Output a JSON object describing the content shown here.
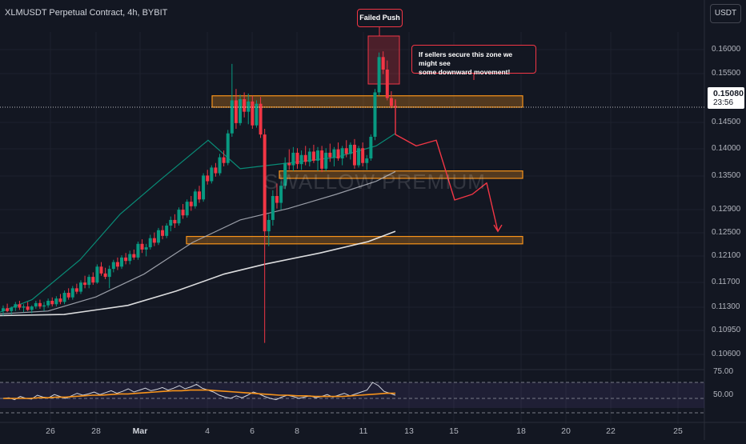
{
  "header": {
    "symbol_line": "XLMUSDT Perpetual Contract, 4h, BYBIT"
  },
  "currency_button": "USDT",
  "price_axis": [
    "0.16000",
    "0.15500",
    "0.14500",
    "0.14000",
    "0.13500",
    "0.12900",
    "0.12500",
    "0.12100",
    "0.11700",
    "0.11300",
    "0.10950",
    "0.10600"
  ],
  "current_price": {
    "price": "0.15080",
    "countdown": "23:56"
  },
  "rsi_axis": [
    "75.00",
    "50.00"
  ],
  "time_axis": [
    {
      "label": "26"
    },
    {
      "label": "28"
    },
    {
      "label": "Mar",
      "bold": true
    },
    {
      "label": "4"
    },
    {
      "label": "6"
    },
    {
      "label": "8"
    },
    {
      "label": "11"
    },
    {
      "label": "13"
    },
    {
      "label": "15"
    },
    {
      "label": "18"
    },
    {
      "label": "20"
    },
    {
      "label": "22"
    },
    {
      "label": "25"
    }
  ],
  "watermark": "SWALLOW PREMIUM",
  "annotations": {
    "failed_push": "Failed Push",
    "note_line1": "If sellers secure this zone we might see",
    "note_line2": "some downward movement!"
  },
  "colors": {
    "up": "#089981",
    "down": "#f23645",
    "zone": "#f7931a",
    "ma": "#ffffff",
    "rsi": "#f7931a"
  },
  "chart_data": {
    "type": "candlestick",
    "timeframe": "4h",
    "ylim": [
      0.105,
      0.164
    ],
    "zones": [
      {
        "low": 0.1508,
        "high": 0.1528
      },
      {
        "low": 0.1383,
        "high": 0.1396
      },
      {
        "low": 0.1268,
        "high": 0.1281
      }
    ],
    "candles": [
      [
        0.115,
        0.116,
        0.1142,
        0.1155
      ],
      [
        0.1155,
        0.1163,
        0.1148,
        0.115
      ],
      [
        0.115,
        0.1158,
        0.1144,
        0.1156
      ],
      [
        0.1156,
        0.1166,
        0.115,
        0.1162
      ],
      [
        0.1162,
        0.1168,
        0.1152,
        0.1156
      ],
      [
        0.1156,
        0.1162,
        0.1148,
        0.1158
      ],
      [
        0.1158,
        0.1166,
        0.115,
        0.1152
      ],
      [
        0.1152,
        0.116,
        0.1146,
        0.1158
      ],
      [
        0.1158,
        0.1168,
        0.1154,
        0.1164
      ],
      [
        0.1164,
        0.117,
        0.1154,
        0.1158
      ],
      [
        0.1158,
        0.1166,
        0.115,
        0.116
      ],
      [
        0.116,
        0.1172,
        0.1156,
        0.1168
      ],
      [
        0.1168,
        0.1174,
        0.1158,
        0.1162
      ],
      [
        0.1162,
        0.1176,
        0.1158,
        0.1172
      ],
      [
        0.1172,
        0.118,
        0.1162,
        0.1166
      ],
      [
        0.1166,
        0.1186,
        0.1162,
        0.1182
      ],
      [
        0.1182,
        0.119,
        0.117,
        0.1174
      ],
      [
        0.1174,
        0.1194,
        0.117,
        0.119
      ],
      [
        0.119,
        0.1198,
        0.118,
        0.1184
      ],
      [
        0.1184,
        0.1204,
        0.118,
        0.12
      ],
      [
        0.12,
        0.1212,
        0.119,
        0.1196
      ],
      [
        0.1196,
        0.1214,
        0.119,
        0.121
      ],
      [
        0.121,
        0.1218,
        0.1196,
        0.12
      ],
      [
        0.12,
        0.1232,
        0.1198,
        0.1228
      ],
      [
        0.1228,
        0.1236,
        0.1212,
        0.1216
      ],
      [
        0.1216,
        0.1226,
        0.1206,
        0.121
      ],
      [
        0.121,
        0.123,
        0.119,
        0.1224
      ],
      [
        0.1224,
        0.124,
        0.1218,
        0.1236
      ],
      [
        0.1236,
        0.1244,
        0.1222,
        0.1228
      ],
      [
        0.1228,
        0.1248,
        0.1224,
        0.1244
      ],
      [
        0.1244,
        0.1252,
        0.1232,
        0.1238
      ],
      [
        0.1238,
        0.1256,
        0.1232,
        0.125
      ],
      [
        0.125,
        0.1258,
        0.124,
        0.1244
      ],
      [
        0.1244,
        0.1272,
        0.124,
        0.1268
      ],
      [
        0.1268,
        0.1276,
        0.1252,
        0.1258
      ],
      [
        0.1258,
        0.1268,
        0.1246,
        0.1262
      ],
      [
        0.1262,
        0.1284,
        0.1258,
        0.1278
      ],
      [
        0.1278,
        0.1288,
        0.1264,
        0.127
      ],
      [
        0.127,
        0.1296,
        0.1266,
        0.1292
      ],
      [
        0.1292,
        0.13,
        0.1276,
        0.1282
      ],
      [
        0.1282,
        0.1304,
        0.1278,
        0.13
      ],
      [
        0.13,
        0.1316,
        0.129,
        0.131
      ],
      [
        0.131,
        0.132,
        0.1296,
        0.1304
      ],
      [
        0.1304,
        0.1332,
        0.13,
        0.1328
      ],
      [
        0.1328,
        0.1338,
        0.1312,
        0.1318
      ],
      [
        0.1318,
        0.1346,
        0.1314,
        0.1342
      ],
      [
        0.1342,
        0.1352,
        0.1326,
        0.1334
      ],
      [
        0.1334,
        0.1364,
        0.133,
        0.136
      ],
      [
        0.136,
        0.137,
        0.134,
        0.1346
      ],
      [
        0.1346,
        0.1392,
        0.1342,
        0.1388
      ],
      [
        0.1388,
        0.1398,
        0.1372,
        0.1378
      ],
      [
        0.1378,
        0.1406,
        0.1374,
        0.1402
      ],
      [
        0.1402,
        0.141,
        0.1386,
        0.1392
      ],
      [
        0.1392,
        0.1426,
        0.1388,
        0.142
      ],
      [
        0.142,
        0.1432,
        0.1404,
        0.141
      ],
      [
        0.141,
        0.1468,
        0.1406,
        0.1462
      ],
      [
        0.1462,
        0.1584,
        0.1456,
        0.152
      ],
      [
        0.152,
        0.154,
        0.147,
        0.148
      ],
      [
        0.148,
        0.153,
        0.1476,
        0.1522
      ],
      [
        0.1522,
        0.1534,
        0.149,
        0.15
      ],
      [
        0.15,
        0.1532,
        0.1478,
        0.1518
      ],
      [
        0.1518,
        0.1528,
        0.147,
        0.1476
      ],
      [
        0.1476,
        0.152,
        0.1472,
        0.1514
      ],
      [
        0.1514,
        0.1526,
        0.1454,
        0.146
      ],
      [
        0.146,
        0.147,
        0.1094,
        0.129
      ],
      [
        0.129,
        0.132,
        0.1264,
        0.131
      ],
      [
        0.131,
        0.1362,
        0.13,
        0.1352
      ],
      [
        0.1352,
        0.1374,
        0.133,
        0.134
      ],
      [
        0.134,
        0.1378,
        0.1328,
        0.137
      ],
      [
        0.137,
        0.142,
        0.1364,
        0.141
      ],
      [
        0.141,
        0.1434,
        0.1398,
        0.1406
      ],
      [
        0.1406,
        0.1438,
        0.1396,
        0.1428
      ],
      [
        0.1428,
        0.1436,
        0.14,
        0.1408
      ],
      [
        0.1408,
        0.1432,
        0.1398,
        0.1424
      ],
      [
        0.1424,
        0.144,
        0.1406,
        0.1412
      ],
      [
        0.1412,
        0.1436,
        0.1404,
        0.143
      ],
      [
        0.143,
        0.1442,
        0.141,
        0.1414
      ],
      [
        0.1414,
        0.1438,
        0.1396,
        0.1432
      ],
      [
        0.1432,
        0.144,
        0.1394,
        0.14
      ],
      [
        0.14,
        0.1436,
        0.1396,
        0.1428
      ],
      [
        0.1428,
        0.1444,
        0.1412,
        0.142
      ],
      [
        0.142,
        0.1438,
        0.1404,
        0.1434
      ],
      [
        0.1434,
        0.1446,
        0.1414,
        0.1418
      ],
      [
        0.1418,
        0.144,
        0.1406,
        0.1436
      ],
      [
        0.1436,
        0.145,
        0.142,
        0.1426
      ],
      [
        0.1426,
        0.1446,
        0.1416,
        0.1442
      ],
      [
        0.1442,
        0.1452,
        0.14,
        0.1406
      ],
      [
        0.1406,
        0.144,
        0.1402,
        0.1436
      ],
      [
        0.1436,
        0.1446,
        0.1404,
        0.141
      ],
      [
        0.141,
        0.1424,
        0.1398,
        0.1418
      ],
      [
        0.1418,
        0.146,
        0.1414,
        0.1456
      ],
      [
        0.1456,
        0.154,
        0.145,
        0.1534
      ],
      [
        0.1534,
        0.1604,
        0.1528,
        0.1596
      ],
      [
        0.1596,
        0.1606,
        0.1566,
        0.1574
      ],
      [
        0.1574,
        0.159,
        0.152,
        0.1524
      ],
      [
        0.1524,
        0.1536,
        0.1506,
        0.151
      ],
      [
        0.151,
        0.1522,
        0.15,
        0.1508
      ]
    ],
    "moving_averages": [
      {
        "name": "ma_fast",
        "values": [
          [
            0,
            0.1148
          ],
          [
            40,
            0.117
          ],
          [
            100,
            0.124
          ],
          [
            150,
            0.132
          ],
          [
            200,
            0.138
          ],
          [
            260,
            0.145
          ],
          [
            300,
            0.14
          ],
          [
            360,
            0.141
          ],
          [
            420,
            0.142
          ],
          [
            470,
            0.144
          ],
          [
            494,
            0.1462
          ]
        ]
      },
      {
        "name": "ma_mid",
        "values": [
          [
            0,
            0.1145
          ],
          [
            60,
            0.115
          ],
          [
            120,
            0.1175
          ],
          [
            180,
            0.1215
          ],
          [
            240,
            0.127
          ],
          [
            300,
            0.131
          ],
          [
            360,
            0.133
          ],
          [
            420,
            0.1355
          ],
          [
            470,
            0.1378
          ],
          [
            494,
            0.1395
          ]
        ]
      },
      {
        "name": "ma_slow",
        "values": [
          [
            0,
            0.1142
          ],
          [
            80,
            0.1144
          ],
          [
            160,
            0.116
          ],
          [
            220,
            0.1185
          ],
          [
            280,
            0.1215
          ],
          [
            330,
            0.1232
          ],
          [
            400,
            0.1252
          ],
          [
            460,
            0.1272
          ],
          [
            494,
            0.129
          ]
        ]
      }
    ],
    "projection_path": [
      [
        494,
        0.152
      ],
      [
        494,
        0.146
      ],
      [
        520,
        0.144
      ],
      [
        545,
        0.145
      ],
      [
        556,
        0.14
      ],
      [
        568,
        0.1345
      ],
      [
        590,
        0.1355
      ],
      [
        608,
        0.1375
      ],
      [
        622,
        0.129
      ]
    ],
    "rsi": {
      "levels": [
        75,
        50
      ],
      "rsi_line": [
        50,
        51,
        48,
        53,
        50,
        49,
        55,
        52,
        51,
        56,
        53,
        50,
        54,
        58,
        55,
        57,
        60,
        56,
        59,
        62,
        58,
        61,
        65,
        60,
        63,
        66,
        62,
        64,
        67,
        63,
        66,
        70,
        65,
        68,
        72,
        66,
        63,
        60,
        55,
        52,
        50,
        54,
        51,
        55,
        60,
        57,
        53,
        50,
        48,
        52,
        55,
        53,
        50,
        52,
        54,
        51,
        53,
        56,
        52,
        55,
        58,
        54,
        57,
        60,
        63,
        75,
        70,
        61,
        58,
        55
      ],
      "signal_line": [
        50,
        50,
        50,
        50,
        51,
        51,
        52,
        52,
        53,
        54,
        55,
        55,
        56,
        57,
        57,
        58,
        59,
        60,
        61,
        62,
        62,
        63,
        63,
        63,
        62,
        61,
        60,
        59,
        58,
        57,
        56,
        55,
        55,
        54,
        54,
        53,
        53,
        53,
        53,
        54,
        55,
        56,
        57,
        58,
        58
      ]
    }
  }
}
